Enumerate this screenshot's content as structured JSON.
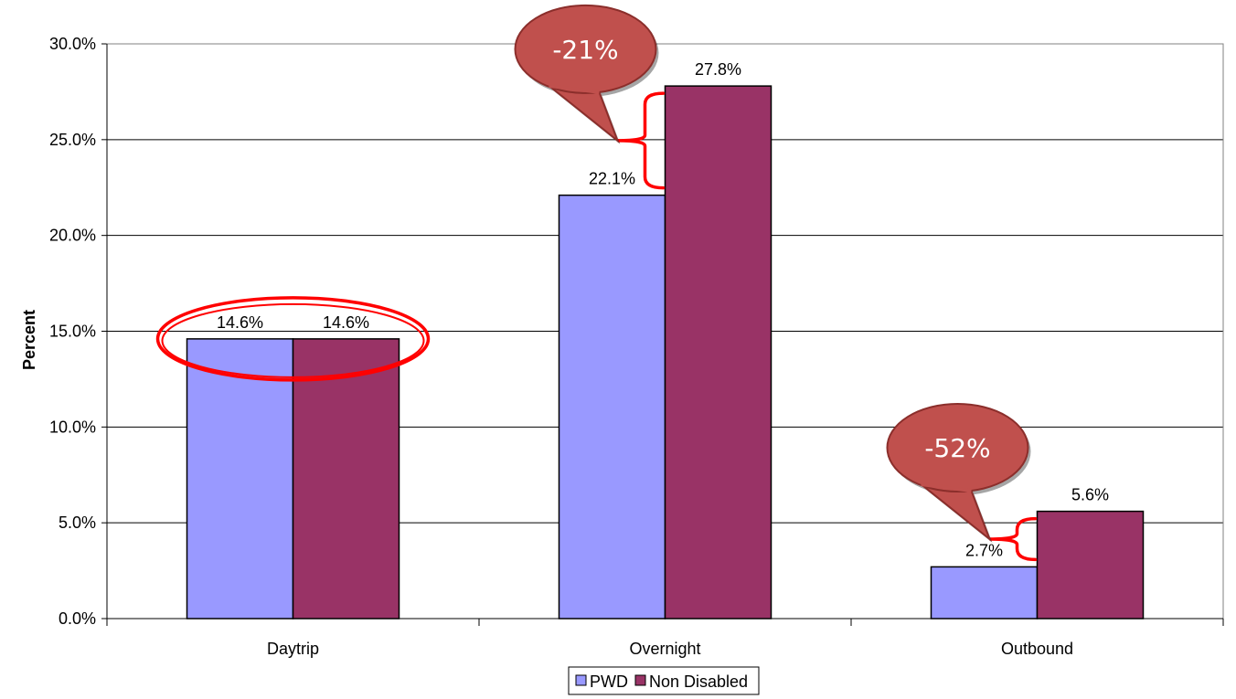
{
  "chart_data": {
    "type": "bar",
    "categories": [
      "Daytrip",
      "Overnight",
      "Outbound"
    ],
    "series": [
      {
        "name": "PWD",
        "values": [
          14.6,
          22.1,
          2.7
        ],
        "labels": [
          "14.6%",
          "22.1%",
          "2.7%"
        ],
        "color": "#9999ff"
      },
      {
        "name": "Non Disabled",
        "values": [
          14.6,
          27.8,
          5.6
        ],
        "labels": [
          "14.6%",
          "27.8%",
          "5.6%"
        ],
        "color": "#993366"
      }
    ],
    "ylabel": "Percent",
    "ylim": [
      0,
      30
    ],
    "yticks": [
      0,
      5,
      10,
      15,
      20,
      25,
      30
    ],
    "ytick_labels": [
      "0.0%",
      "5.0%",
      "10.0%",
      "15.0%",
      "20.0%",
      "25.0%",
      "30.0%"
    ],
    "grid": true,
    "legend_position": "bottom",
    "annotations": [
      {
        "type": "callout",
        "category": "Overnight",
        "text": "-21%"
      },
      {
        "type": "callout",
        "category": "Outbound",
        "text": "-52%"
      },
      {
        "type": "ellipse",
        "category": "Daytrip"
      }
    ],
    "colors": {
      "callout_fill": "#c0504d",
      "accent": "#ff0000",
      "gridline": "#000000"
    }
  }
}
